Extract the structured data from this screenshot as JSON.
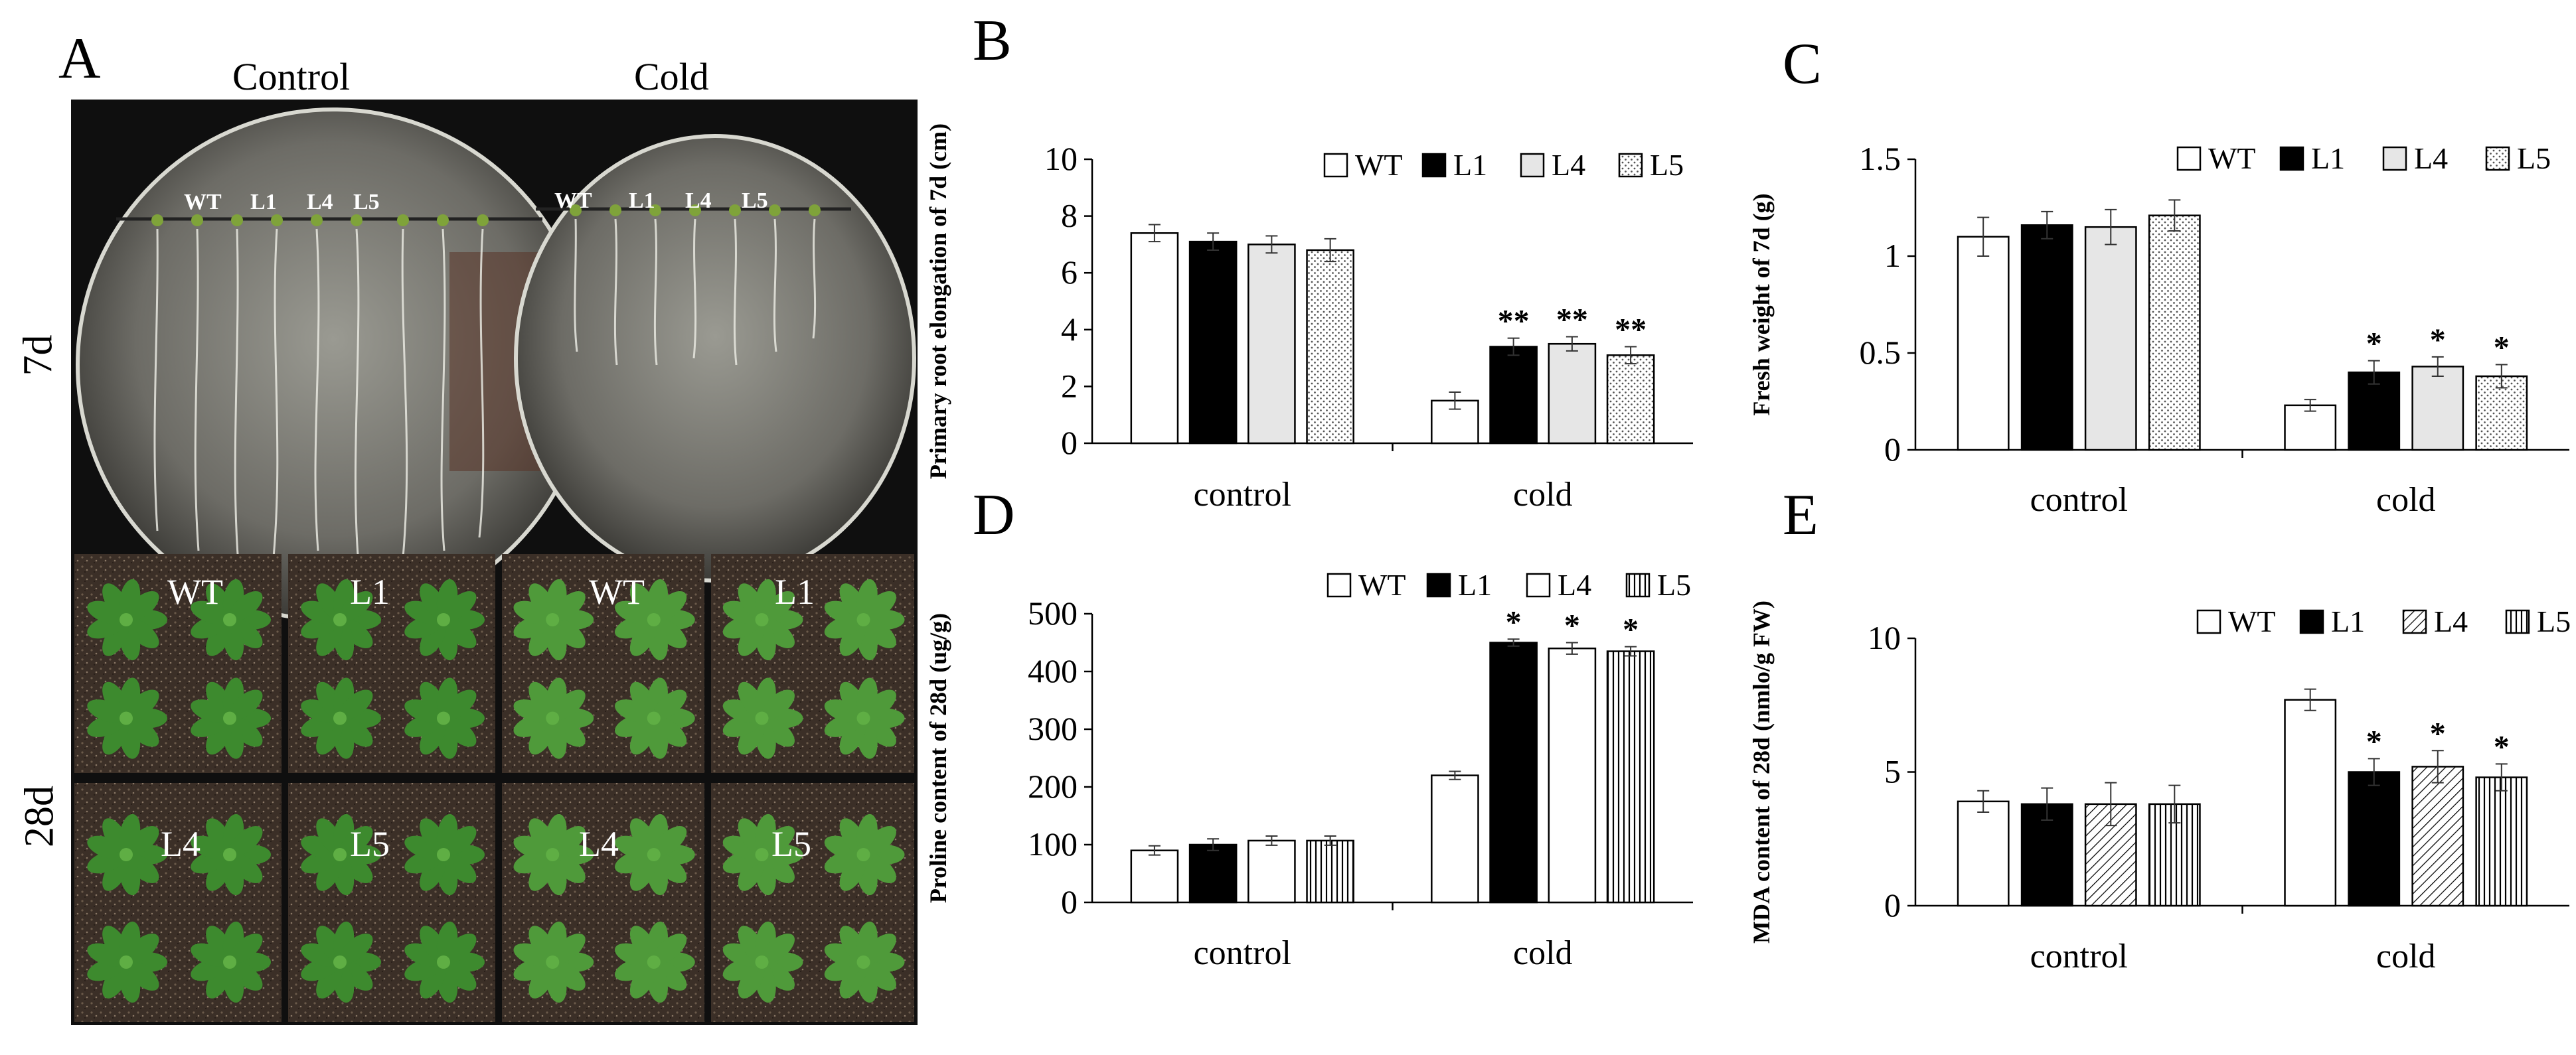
{
  "panel_a": {
    "letter": "A",
    "col_labels": [
      "Control",
      "Cold"
    ],
    "row_labels": [
      "7d",
      "28d"
    ],
    "plate_labels": {
      "control": [
        "WT",
        "L1",
        "L4",
        "L5"
      ],
      "cold": [
        "WT",
        "L1",
        "L4",
        "L5"
      ]
    },
    "pot_labels": [
      "WT",
      "L1",
      "WT",
      "L1",
      "L4",
      "L5",
      "L4",
      "L5"
    ]
  },
  "chart_data": [
    {
      "id": "B",
      "letter": "B",
      "type": "bar",
      "ylabel": "Primary root elongation of 7d (cm)",
      "ylim": [
        0,
        10
      ],
      "yticks": [
        "0",
        "2",
        "4",
        "6",
        "8",
        "10"
      ],
      "categories": [
        "control",
        "cold"
      ],
      "series": [
        {
          "name": "WT",
          "pattern": "white",
          "values": [
            7.4,
            1.5
          ],
          "errors": [
            0.3,
            0.3
          ]
        },
        {
          "name": "L1",
          "pattern": "black",
          "values": [
            7.1,
            3.4
          ],
          "errors": [
            0.3,
            0.3
          ]
        },
        {
          "name": "L4",
          "pattern": "light-gray",
          "values": [
            7.0,
            3.5
          ],
          "errors": [
            0.3,
            0.25
          ]
        },
        {
          "name": "L5",
          "pattern": "dots",
          "values": [
            6.8,
            3.1
          ],
          "errors": [
            0.4,
            0.3
          ]
        }
      ],
      "annotations": [
        [
          "",
          ""
        ],
        [
          "",
          "**"
        ],
        [
          "",
          "**"
        ],
        [
          "",
          "**"
        ]
      ],
      "legend": "top-right"
    },
    {
      "id": "C",
      "letter": "C",
      "type": "bar",
      "ylabel": "Fresh weight of 7d  (g)",
      "ylim": [
        0,
        1.5
      ],
      "yticks": [
        "0",
        "0.5",
        "1",
        "1.5"
      ],
      "categories": [
        "control",
        "cold"
      ],
      "series": [
        {
          "name": "WT",
          "pattern": "white",
          "values": [
            1.1,
            0.23
          ],
          "errors": [
            0.1,
            0.03
          ]
        },
        {
          "name": "L1",
          "pattern": "black",
          "values": [
            1.16,
            0.4
          ],
          "errors": [
            0.07,
            0.06
          ]
        },
        {
          "name": "L4",
          "pattern": "light-gray",
          "values": [
            1.15,
            0.43
          ],
          "errors": [
            0.09,
            0.05
          ]
        },
        {
          "name": "L5",
          "pattern": "dots",
          "values": [
            1.21,
            0.38
          ],
          "errors": [
            0.08,
            0.06
          ]
        }
      ],
      "annotations": [
        [
          "",
          ""
        ],
        [
          "",
          "*"
        ],
        [
          "",
          "*"
        ],
        [
          "",
          "*"
        ]
      ],
      "legend": "top-right"
    },
    {
      "id": "D",
      "letter": "D",
      "type": "bar",
      "ylabel": "Proline content of 28d (ug/g)",
      "ylim": [
        0,
        500
      ],
      "yticks": [
        "0",
        "100",
        "200",
        "300",
        "400",
        "500"
      ],
      "categories": [
        "control",
        "cold"
      ],
      "series": [
        {
          "name": "WT",
          "pattern": "white",
          "values": [
            90,
            220
          ],
          "errors": [
            8,
            7
          ]
        },
        {
          "name": "L1",
          "pattern": "black",
          "values": [
            100,
            450
          ],
          "errors": [
            10,
            6
          ]
        },
        {
          "name": "L4",
          "pattern": "white",
          "values": [
            107,
            440
          ],
          "errors": [
            8,
            10
          ]
        },
        {
          "name": "L5",
          "pattern": "vlines",
          "values": [
            107,
            435
          ],
          "errors": [
            8,
            8
          ]
        }
      ],
      "annotations": [
        [
          "",
          ""
        ],
        [
          "",
          "*"
        ],
        [
          "",
          "*"
        ],
        [
          "",
          "*"
        ]
      ],
      "legend": "top-right"
    },
    {
      "id": "E",
      "letter": "E",
      "type": "bar",
      "ylabel": "MDA content of 28d  (nmlo/g FW)",
      "ylim": [
        0,
        10
      ],
      "yticks": [
        "0",
        "5",
        "10"
      ],
      "categories": [
        "control",
        "cold"
      ],
      "series": [
        {
          "name": "WT",
          "pattern": "white",
          "values": [
            3.9,
            7.7
          ],
          "errors": [
            0.4,
            0.4
          ]
        },
        {
          "name": "L1",
          "pattern": "black",
          "values": [
            3.8,
            5.0
          ],
          "errors": [
            0.6,
            0.5
          ]
        },
        {
          "name": "L4",
          "pattern": "diag",
          "values": [
            3.8,
            5.2
          ],
          "errors": [
            0.8,
            0.6
          ]
        },
        {
          "name": "L5",
          "pattern": "vlines",
          "values": [
            3.8,
            4.8
          ],
          "errors": [
            0.7,
            0.5
          ]
        }
      ],
      "annotations": [
        [
          "",
          ""
        ],
        [
          "",
          "*"
        ],
        [
          "",
          "*"
        ],
        [
          "",
          "*"
        ]
      ],
      "legend": "top-right"
    }
  ]
}
